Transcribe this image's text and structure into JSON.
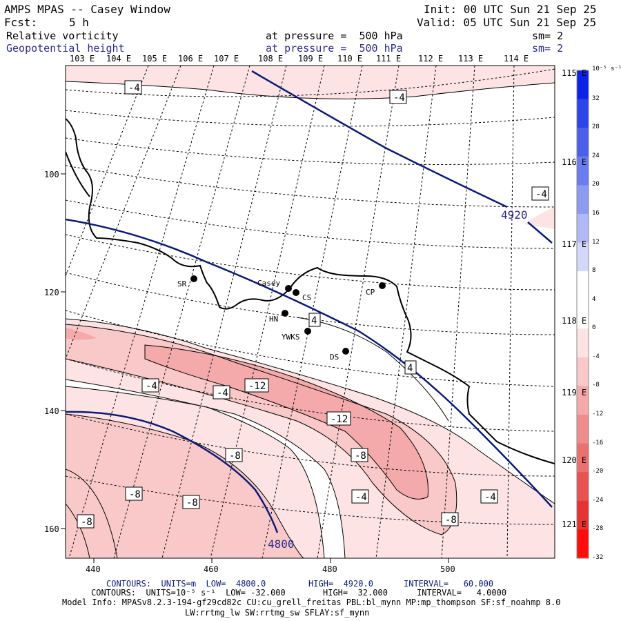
{
  "header": {
    "title": "AMPS MPAS -- Casey Window",
    "init": "Init: 00 UTC Sun 21 Sep 25",
    "fcst_label": "Fcst:",
    "fcst_value": "5 h",
    "valid": "Valid: 05 UTC Sun 21 Sep 25",
    "field1": "Relative vorticity",
    "field1_level": "at pressure =  500 hPa",
    "field1_sm": "sm= 2",
    "field2": "Geopotential height",
    "field2_level": "at pressure =  500 hPa",
    "field2_sm": "sm= 2"
  },
  "axes": {
    "top_lon_labels": [
      "103 E",
      "104 E",
      "105 E",
      "106 E",
      "107 E",
      "108 E",
      "109 E",
      "110 E",
      "111 E",
      "112 E",
      "113 E",
      "114 E"
    ],
    "right_lon_labels": [
      "115 E",
      "116 E",
      "117 E",
      "118 E",
      "119 E",
      "120 E",
      "121 E"
    ],
    "left_ticks": [
      "100",
      "120",
      "140",
      "160"
    ],
    "bottom_ticks": [
      "440",
      "460",
      "480",
      "500"
    ]
  },
  "stations": [
    {
      "name": "SR"
    },
    {
      "name": "Casey"
    },
    {
      "name": "CS"
    },
    {
      "name": "CP"
    },
    {
      "name": "HN"
    },
    {
      "name": "YWKS"
    },
    {
      "name": "DS"
    }
  ],
  "height_labels": [
    "4920",
    "4800"
  ],
  "vorticity_labels": [
    "-4",
    "-4",
    "-4",
    "-4",
    "-4",
    "-4",
    "4",
    "4",
    "-12",
    "-12",
    "-8",
    "-8",
    "-8",
    "-8",
    "-4",
    "-8"
  ],
  "colorbar": {
    "unit": "10⁻⁵ s⁻¹",
    "labels": [
      "32",
      "28",
      "24",
      "20",
      "16",
      "12",
      "8",
      "4",
      "0",
      "-4",
      "-8",
      "-12",
      "-16",
      "-20",
      "-24",
      "-28",
      "-32"
    ],
    "colors": [
      "#0b22e8",
      "#2c45ea",
      "#4a60ec",
      "#6a7cef",
      "#8c9af2",
      "#b0b9f6",
      "#d3d8fa",
      "#ffffff",
      "#ffffff",
      "#fde3e3",
      "#f9c9c9",
      "#f4aaaa",
      "#ef8d8d",
      "#ec7070",
      "#ea5252",
      "#e83232",
      "#ff0d0d"
    ]
  },
  "footer": {
    "line1_label": "CONTOURS:  UNITS=m  LOW=  4800.0",
    "line1_high": "HIGH=  4920.0",
    "line1_interval": "INTERVAL=   60.000",
    "line2_label": "CONTOURS:  UNITS=10⁻⁵ s⁻¹  LOW= -32.000",
    "line2_high": "HIGH=  32.000",
    "line2_interval": "INTERVAL=   4.0000",
    "model_info": "Model Info: MPASv8.2.3-194-gf29cd82c CU:cu_grell_freitas PBL:bl_mynn MP:mp_thompson SF:sf_noahmp 8.0",
    "model_info2": "LW:rrtmg_lw SW:rrtmg_sw SFLAY:sf_mynn"
  }
}
